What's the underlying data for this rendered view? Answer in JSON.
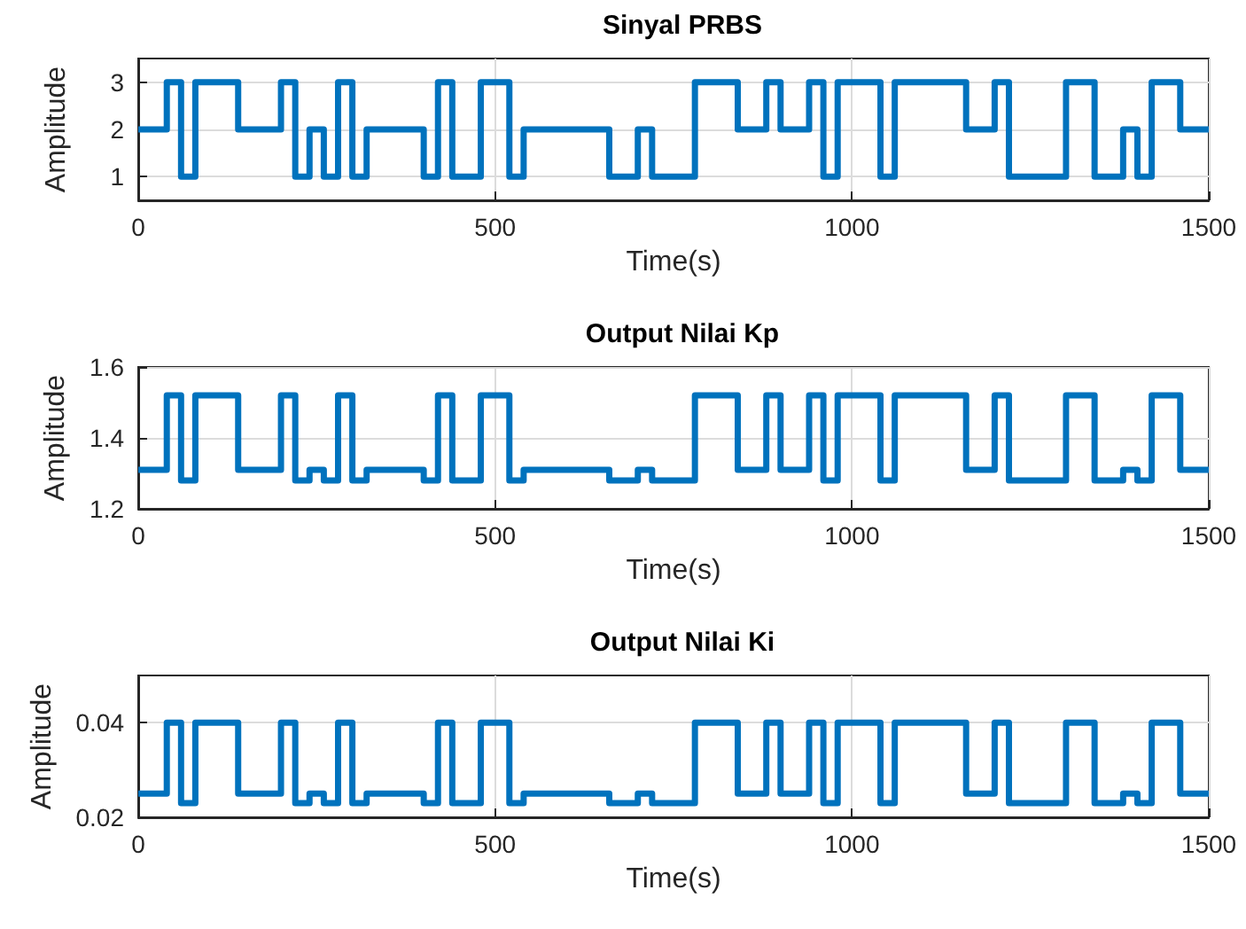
{
  "chart_data": [
    {
      "type": "step",
      "title": "Sinyal PRBS",
      "xlabel": "Time(s)",
      "ylabel": "Amplitude",
      "x": [
        0,
        40,
        60,
        80,
        140,
        200,
        220,
        240,
        260,
        280,
        300,
        320,
        400,
        420,
        440,
        480,
        520,
        540,
        660,
        700,
        720,
        780,
        840,
        880,
        900,
        940,
        960,
        980,
        1040,
        1060,
        1160,
        1200,
        1220,
        1300,
        1340,
        1380,
        1400,
        1420,
        1460,
        1500
      ],
      "series": [
        {
          "color": "#0072bd",
          "values": [
            2,
            3,
            1,
            3,
            2,
            3,
            1,
            2,
            1,
            3,
            1,
            2,
            1,
            3,
            1,
            3,
            1,
            2,
            1,
            2,
            1,
            3,
            2,
            3,
            2,
            3,
            1,
            3,
            1,
            3,
            2,
            3,
            1,
            3,
            1,
            2,
            1,
            3,
            2,
            2
          ]
        }
      ],
      "xlim": [
        0,
        1500
      ],
      "xticks": [
        0,
        500,
        1000,
        1500
      ],
      "ylim": [
        0.5,
        3.5
      ],
      "yticks": [
        1,
        2,
        3
      ],
      "grid": true
    },
    {
      "type": "step",
      "title": "Output Nilai Kp",
      "xlabel": "Time(s)",
      "ylabel": "Amplitude",
      "x": [
        0,
        40,
        60,
        80,
        140,
        200,
        220,
        240,
        260,
        280,
        300,
        320,
        400,
        420,
        440,
        480,
        520,
        540,
        660,
        700,
        720,
        780,
        840,
        880,
        900,
        940,
        960,
        980,
        1040,
        1060,
        1160,
        1200,
        1220,
        1300,
        1340,
        1380,
        1400,
        1420,
        1460,
        1500
      ],
      "series": [
        {
          "color": "#0072bd",
          "values": [
            1.31,
            1.52,
            1.28,
            1.52,
            1.31,
            1.52,
            1.28,
            1.31,
            1.28,
            1.52,
            1.28,
            1.31,
            1.28,
            1.52,
            1.28,
            1.52,
            1.28,
            1.31,
            1.28,
            1.31,
            1.28,
            1.52,
            1.31,
            1.52,
            1.31,
            1.52,
            1.28,
            1.52,
            1.28,
            1.52,
            1.31,
            1.52,
            1.28,
            1.52,
            1.28,
            1.31,
            1.28,
            1.52,
            1.31,
            1.31
          ]
        }
      ],
      "xlim": [
        0,
        1500
      ],
      "xticks": [
        0,
        500,
        1000,
        1500
      ],
      "ylim": [
        1.2,
        1.6
      ],
      "yticks": [
        1.2,
        1.4,
        1.6
      ],
      "grid": true
    },
    {
      "type": "step",
      "title": "Output Nilai Ki",
      "xlabel": "Time(s)",
      "ylabel": "Amplitude",
      "x": [
        0,
        40,
        60,
        80,
        140,
        200,
        220,
        240,
        260,
        280,
        300,
        320,
        400,
        420,
        440,
        480,
        520,
        540,
        660,
        700,
        720,
        780,
        840,
        880,
        900,
        940,
        960,
        980,
        1040,
        1060,
        1160,
        1200,
        1220,
        1300,
        1340,
        1380,
        1400,
        1420,
        1460,
        1500
      ],
      "series": [
        {
          "color": "#0072bd",
          "values": [
            0.025,
            0.04,
            0.023,
            0.04,
            0.025,
            0.04,
            0.023,
            0.025,
            0.023,
            0.04,
            0.023,
            0.025,
            0.023,
            0.04,
            0.023,
            0.04,
            0.023,
            0.025,
            0.023,
            0.025,
            0.023,
            0.04,
            0.025,
            0.04,
            0.025,
            0.04,
            0.023,
            0.04,
            0.023,
            0.04,
            0.025,
            0.04,
            0.023,
            0.04,
            0.023,
            0.025,
            0.023,
            0.04,
            0.025,
            0.025
          ]
        }
      ],
      "xlim": [
        0,
        1500
      ],
      "xticks": [
        0,
        500,
        1000,
        1500
      ],
      "ylim": [
        0.02,
        0.05
      ],
      "yticks": [
        0.02,
        0.04
      ],
      "grid": true
    }
  ]
}
